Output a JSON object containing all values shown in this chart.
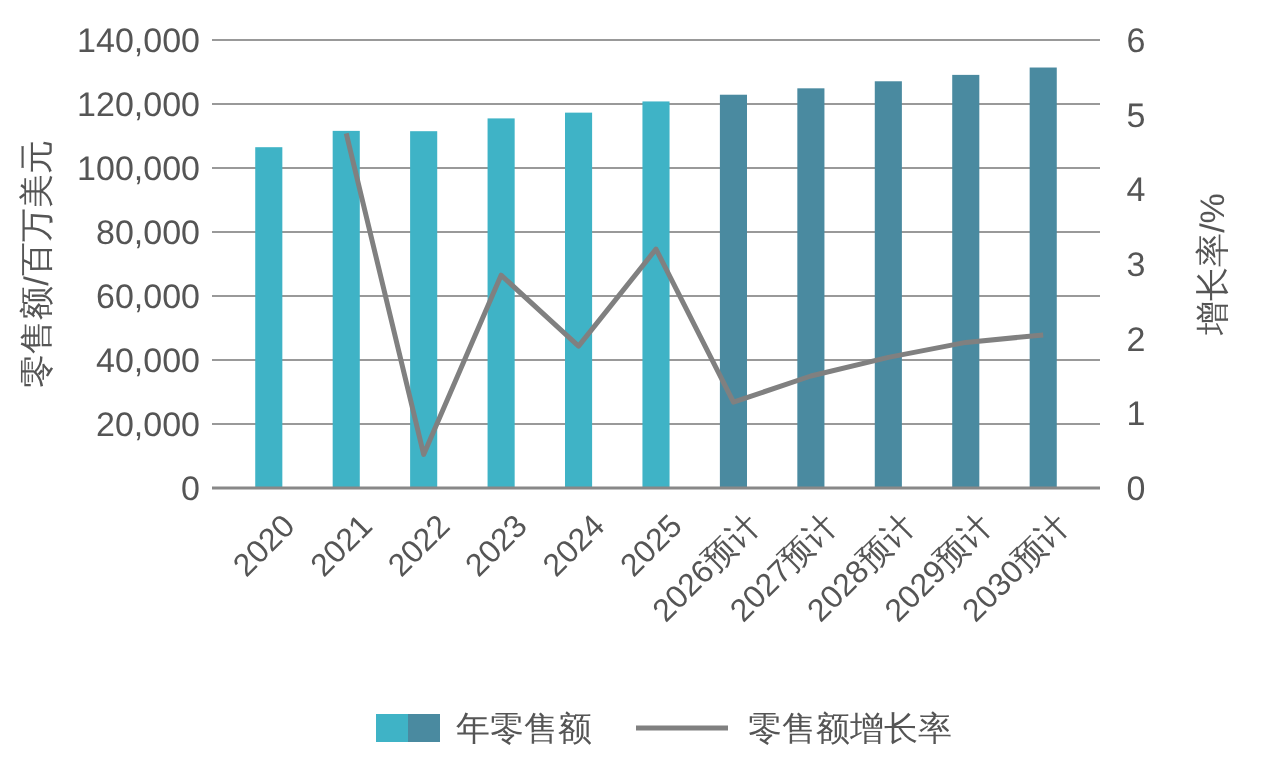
{
  "chart_data": {
    "type": "bar",
    "categories": [
      "2020",
      "2021",
      "2022",
      "2023",
      "2024",
      "2025",
      "2026预计",
      "2027预计",
      "2028预计",
      "2029预计",
      "2030预计"
    ],
    "ylabel": "零售额/百万美元",
    "y2label": "增长率/%",
    "series": [
      {
        "name": "年零售额",
        "colors": [
          "#3fb3c6",
          "#3fb3c6",
          "#3fb3c6",
          "#3fb3c6",
          "#3fb3c6",
          "#3fb3c6",
          "#4a8aa0",
          "#4a8aa0",
          "#4a8aa0",
          "#4a8aa0",
          "#4a8aa0"
        ],
        "values": [
          106500,
          111600,
          111500,
          115500,
          117300,
          120800,
          122900,
          124900,
          127100,
          129100,
          131400
        ]
      },
      {
        "name": "零售额增长率",
        "type": "line",
        "axis": "y2",
        "color": "#808080",
        "values": [
          null,
          4.75,
          0.45,
          2.85,
          1.9,
          3.2,
          1.15,
          1.5,
          1.75,
          1.95,
          2.05
        ]
      }
    ],
    "ylim": [
      0,
      140000
    ],
    "yticks": [
      {
        "value": 0,
        "label": "0"
      },
      {
        "value": 20000,
        "label": "20,000"
      },
      {
        "value": 40000,
        "label": "40,000"
      },
      {
        "value": 60000,
        "label": "60,000"
      },
      {
        "value": 80000,
        "label": "80,000"
      },
      {
        "value": 100000,
        "label": "100,000"
      },
      {
        "value": 120000,
        "label": "120,000"
      },
      {
        "value": 140000,
        "label": "140,000"
      }
    ],
    "y2lim": [
      0,
      6
    ],
    "y2ticks": [
      0,
      1,
      2,
      3,
      4,
      5,
      6
    ],
    "grid": "y",
    "legend": "bottom"
  }
}
